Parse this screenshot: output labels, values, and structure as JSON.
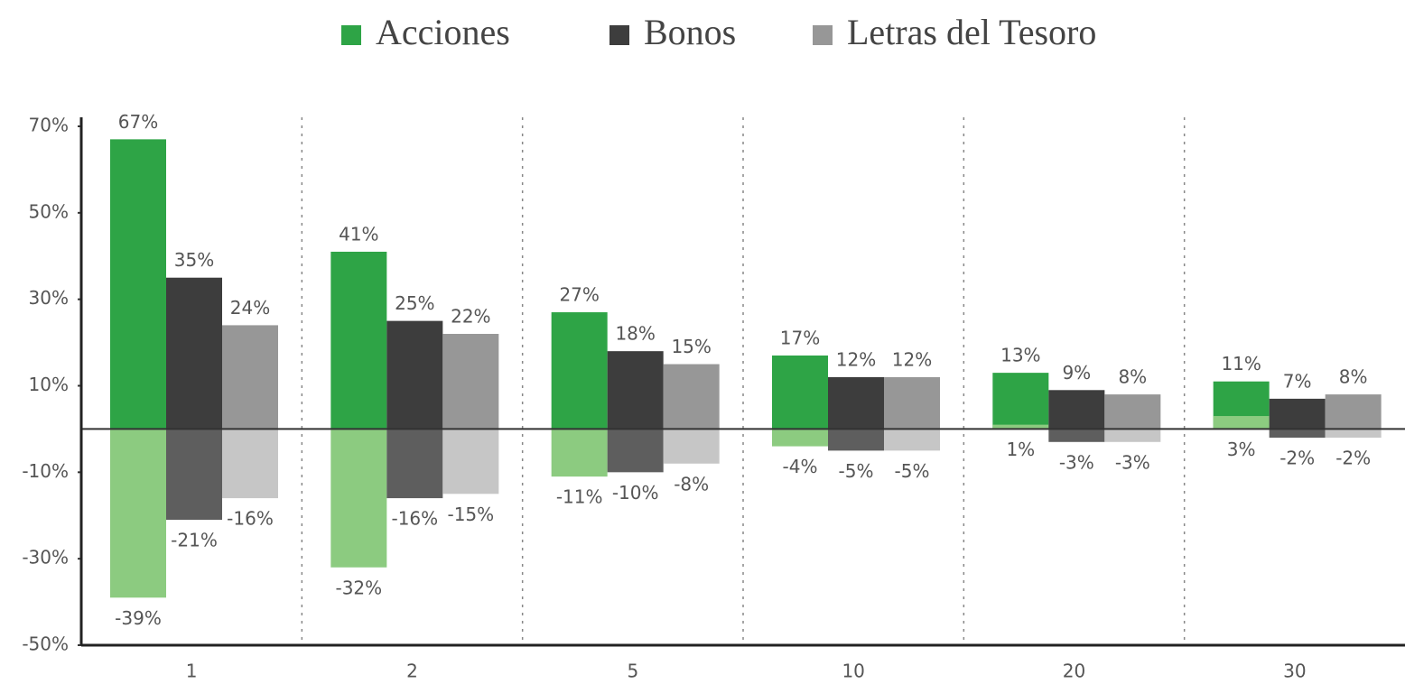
{
  "chart_data": {
    "type": "floating-bar",
    "categories": [
      "1",
      "2",
      "5",
      "10",
      "20",
      "30"
    ],
    "series": [
      {
        "name": "Acciones",
        "color": "#2ea446",
        "low_color": "#8ccb80",
        "high": [
          67,
          41,
          27,
          17,
          13,
          11
        ],
        "high_labels": [
          "67%",
          "41%",
          "27%",
          "17%",
          "13%",
          "11%"
        ],
        "low": [
          -39,
          -32,
          -11,
          -4,
          1,
          3
        ],
        "low_labels": [
          "-39%",
          "-32%",
          "-11%",
          "-4%",
          "1%",
          "3%"
        ]
      },
      {
        "name": "Bonos",
        "color": "#3d3d3d",
        "low_color": "#5e5e5e",
        "high": [
          35,
          25,
          18,
          12,
          9,
          7
        ],
        "high_labels": [
          "35%",
          "25%",
          "18%",
          "12%",
          "9%",
          "7%"
        ],
        "low": [
          -21,
          -16,
          -10,
          -5,
          -3,
          -2
        ],
        "low_labels": [
          "-21%",
          "-16%",
          "-10%",
          "-5%",
          "-3%",
          "-2%"
        ]
      },
      {
        "name": "Letras del Tesoro",
        "color": "#979797",
        "low_color": "#c6c6c6",
        "high": [
          24,
          22,
          15,
          12,
          8,
          8
        ],
        "high_labels": [
          "24%",
          "22%",
          "15%",
          "12%",
          "8%",
          "8%"
        ],
        "low": [
          -16,
          -15,
          -8,
          -5,
          -3,
          -2
        ],
        "low_labels": [
          "-16%",
          "-15%",
          "-8%",
          "-5%",
          "-3%",
          "-2%"
        ]
      }
    ],
    "ylim": [
      -50,
      70
    ],
    "yticks": [
      {
        "value": 70,
        "label": "70%"
      },
      {
        "value": 50,
        "label": "50%"
      },
      {
        "value": 30,
        "label": "30%"
      },
      {
        "value": 10,
        "label": "10%"
      },
      {
        "value": -10,
        "label": "-10%"
      },
      {
        "value": -30,
        "label": "-30%"
      },
      {
        "value": -50,
        "label": "-50%"
      }
    ],
    "legend": "top"
  }
}
